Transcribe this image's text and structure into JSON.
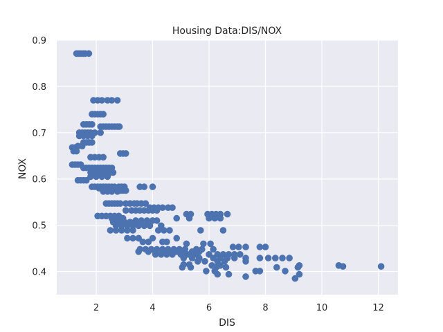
{
  "chart_data": {
    "type": "scatter",
    "title": "Housing Data:DIS/NOX",
    "xlabel": "DIS",
    "ylabel": "NOX",
    "xlim": [
      0.6,
      12.7
    ],
    "ylim": [
      0.35,
      0.9
    ],
    "xticks": [
      2,
      4,
      6,
      8,
      10,
      12
    ],
    "yticks": [
      0.4,
      0.5,
      0.6,
      0.7,
      0.8,
      0.9
    ],
    "grid": true,
    "legend": "none",
    "marker_color": "#4c72b0",
    "background_color": "#eaeaf2",
    "points": [
      [
        1.3,
        0.871
      ],
      [
        1.36,
        0.871
      ],
      [
        1.42,
        0.871
      ],
      [
        1.48,
        0.871
      ],
      [
        1.55,
        0.871
      ],
      [
        1.61,
        0.871
      ],
      [
        1.74,
        0.871
      ],
      [
        1.9,
        0.77
      ],
      [
        2.05,
        0.77
      ],
      [
        2.2,
        0.77
      ],
      [
        2.4,
        0.77
      ],
      [
        2.55,
        0.77
      ],
      [
        2.75,
        0.77
      ],
      [
        1.85,
        0.74
      ],
      [
        1.95,
        0.74
      ],
      [
        2.05,
        0.74
      ],
      [
        2.15,
        0.74
      ],
      [
        2.25,
        0.74
      ],
      [
        2.15,
        0.713
      ],
      [
        2.25,
        0.713
      ],
      [
        2.35,
        0.713
      ],
      [
        2.45,
        0.713
      ],
      [
        2.55,
        0.713
      ],
      [
        2.65,
        0.713
      ],
      [
        2.75,
        0.713
      ],
      [
        2.82,
        0.713
      ],
      [
        1.55,
        0.718
      ],
      [
        1.65,
        0.718
      ],
      [
        1.75,
        0.718
      ],
      [
        1.85,
        0.718
      ],
      [
        1.4,
        0.7
      ],
      [
        1.5,
        0.7
      ],
      [
        1.6,
        0.7
      ],
      [
        1.7,
        0.7
      ],
      [
        1.8,
        0.7
      ],
      [
        1.95,
        0.7
      ],
      [
        2.15,
        0.7
      ],
      [
        1.4,
        0.693
      ],
      [
        1.55,
        0.693
      ],
      [
        1.7,
        0.693
      ],
      [
        1.85,
        0.693
      ],
      [
        1.55,
        0.679
      ],
      [
        1.65,
        0.679
      ],
      [
        1.75,
        0.679
      ],
      [
        1.85,
        0.679
      ],
      [
        1.15,
        0.668
      ],
      [
        1.25,
        0.668
      ],
      [
        1.35,
        0.671
      ],
      [
        1.5,
        0.671
      ],
      [
        1.2,
        0.66
      ],
      [
        1.3,
        0.66
      ],
      [
        2.85,
        0.655
      ],
      [
        2.95,
        0.655
      ],
      [
        3.05,
        0.655
      ],
      [
        1.8,
        0.647
      ],
      [
        1.95,
        0.647
      ],
      [
        2.1,
        0.647
      ],
      [
        2.25,
        0.647
      ],
      [
        1.15,
        0.631
      ],
      [
        1.25,
        0.631
      ],
      [
        1.35,
        0.631
      ],
      [
        1.45,
        0.631
      ],
      [
        1.55,
        0.624
      ],
      [
        1.65,
        0.624
      ],
      [
        1.75,
        0.624
      ],
      [
        1.85,
        0.624
      ],
      [
        1.95,
        0.624
      ],
      [
        2.05,
        0.624
      ],
      [
        2.15,
        0.624
      ],
      [
        2.25,
        0.624
      ],
      [
        2.35,
        0.624
      ],
      [
        2.45,
        0.624
      ],
      [
        2.55,
        0.624
      ],
      [
        1.8,
        0.614
      ],
      [
        1.9,
        0.614
      ],
      [
        2.0,
        0.614
      ],
      [
        2.1,
        0.614
      ],
      [
        2.2,
        0.614
      ],
      [
        2.3,
        0.614
      ],
      [
        2.4,
        0.614
      ],
      [
        2.5,
        0.614
      ],
      [
        2.6,
        0.614
      ],
      [
        1.8,
        0.605
      ],
      [
        2.0,
        0.605
      ],
      [
        2.2,
        0.605
      ],
      [
        2.4,
        0.605
      ],
      [
        1.35,
        0.597
      ],
      [
        1.45,
        0.597
      ],
      [
        1.55,
        0.597
      ],
      [
        1.65,
        0.597
      ],
      [
        1.85,
        0.583
      ],
      [
        1.95,
        0.583
      ],
      [
        2.05,
        0.583
      ],
      [
        2.15,
        0.583
      ],
      [
        2.25,
        0.583
      ],
      [
        2.35,
        0.583
      ],
      [
        2.45,
        0.583
      ],
      [
        2.55,
        0.583
      ],
      [
        2.65,
        0.583
      ],
      [
        2.8,
        0.583
      ],
      [
        2.9,
        0.583
      ],
      [
        3.0,
        0.583
      ],
      [
        3.55,
        0.583
      ],
      [
        3.7,
        0.583
      ],
      [
        4.0,
        0.583
      ],
      [
        2.1,
        0.58
      ],
      [
        2.3,
        0.58
      ],
      [
        2.5,
        0.58
      ],
      [
        2.85,
        0.575
      ],
      [
        2.95,
        0.575
      ],
      [
        3.05,
        0.575
      ],
      [
        2.25,
        0.573
      ],
      [
        2.4,
        0.573
      ],
      [
        2.55,
        0.573
      ],
      [
        2.75,
        0.573
      ],
      [
        2.35,
        0.547
      ],
      [
        2.45,
        0.547
      ],
      [
        2.55,
        0.547
      ],
      [
        2.65,
        0.547
      ],
      [
        2.75,
        0.547
      ],
      [
        2.85,
        0.547
      ],
      [
        3.05,
        0.547
      ],
      [
        3.2,
        0.547
      ],
      [
        3.35,
        0.547
      ],
      [
        3.45,
        0.547
      ],
      [
        3.6,
        0.547
      ],
      [
        3.75,
        0.547
      ],
      [
        3.9,
        0.538
      ],
      [
        4.05,
        0.538
      ],
      [
        4.2,
        0.538
      ],
      [
        4.35,
        0.538
      ],
      [
        4.55,
        0.538
      ],
      [
        4.7,
        0.538
      ],
      [
        3.05,
        0.532
      ],
      [
        3.25,
        0.532
      ],
      [
        3.4,
        0.532
      ],
      [
        3.55,
        0.532
      ],
      [
        3.7,
        0.532
      ],
      [
        3.85,
        0.532
      ],
      [
        4.0,
        0.532
      ],
      [
        4.15,
        0.532
      ],
      [
        5.2,
        0.524
      ],
      [
        5.35,
        0.524
      ],
      [
        5.95,
        0.524
      ],
      [
        6.1,
        0.524
      ],
      [
        6.25,
        0.524
      ],
      [
        6.4,
        0.524
      ],
      [
        6.65,
        0.524
      ],
      [
        2.05,
        0.52
      ],
      [
        2.2,
        0.52
      ],
      [
        2.35,
        0.52
      ],
      [
        2.5,
        0.52
      ],
      [
        2.65,
        0.52
      ],
      [
        2.8,
        0.52
      ],
      [
        2.55,
        0.515
      ],
      [
        2.75,
        0.515
      ],
      [
        2.95,
        0.515
      ],
      [
        4.85,
        0.515
      ],
      [
        5.3,
        0.515
      ],
      [
        6.0,
        0.515
      ],
      [
        6.2,
        0.515
      ],
      [
        6.4,
        0.515
      ],
      [
        2.6,
        0.507
      ],
      [
        2.8,
        0.507
      ],
      [
        3.0,
        0.507
      ],
      [
        3.2,
        0.507
      ],
      [
        3.4,
        0.51
      ],
      [
        3.6,
        0.51
      ],
      [
        3.8,
        0.51
      ],
      [
        4.0,
        0.51
      ],
      [
        4.15,
        0.51
      ],
      [
        2.7,
        0.499
      ],
      [
        2.9,
        0.499
      ],
      [
        3.1,
        0.499
      ],
      [
        3.3,
        0.499
      ],
      [
        3.5,
        0.499
      ],
      [
        3.7,
        0.499
      ],
      [
        3.9,
        0.499
      ],
      [
        4.3,
        0.499
      ],
      [
        2.5,
        0.489
      ],
      [
        2.7,
        0.489
      ],
      [
        2.9,
        0.489
      ],
      [
        3.1,
        0.489
      ],
      [
        3.3,
        0.489
      ],
      [
        4.2,
        0.489
      ],
      [
        4.4,
        0.489
      ],
      [
        4.6,
        0.489
      ],
      [
        5.7,
        0.489
      ],
      [
        6.5,
        0.489
      ],
      [
        3.1,
        0.472
      ],
      [
        3.3,
        0.472
      ],
      [
        3.5,
        0.472
      ],
      [
        4.0,
        0.472
      ],
      [
        4.85,
        0.472
      ],
      [
        3.65,
        0.464
      ],
      [
        3.85,
        0.464
      ],
      [
        4.35,
        0.464
      ],
      [
        4.5,
        0.464
      ],
      [
        5.2,
        0.46
      ],
      [
        5.8,
        0.46
      ],
      [
        6.05,
        0.46
      ],
      [
        3.55,
        0.448
      ],
      [
        3.75,
        0.448
      ],
      [
        3.95,
        0.448
      ],
      [
        4.15,
        0.448
      ],
      [
        4.35,
        0.448
      ],
      [
        4.55,
        0.448
      ],
      [
        4.75,
        0.448
      ],
      [
        4.95,
        0.448
      ],
      [
        5.15,
        0.448
      ],
      [
        5.55,
        0.448
      ],
      [
        5.75,
        0.448
      ],
      [
        6.15,
        0.448
      ],
      [
        3.5,
        0.443
      ],
      [
        3.85,
        0.443
      ],
      [
        4.1,
        0.443
      ],
      [
        4.35,
        0.443
      ],
      [
        4.6,
        0.443
      ],
      [
        4.85,
        0.443
      ],
      [
        5.1,
        0.443
      ],
      [
        5.4,
        0.443
      ],
      [
        5.65,
        0.443
      ],
      [
        4.1,
        0.437
      ],
      [
        4.3,
        0.437
      ],
      [
        4.5,
        0.437
      ],
      [
        4.7,
        0.437
      ],
      [
        5.0,
        0.437
      ],
      [
        5.25,
        0.437
      ],
      [
        5.5,
        0.437
      ],
      [
        6.0,
        0.437
      ],
      [
        6.3,
        0.437
      ],
      [
        6.5,
        0.437
      ],
      [
        6.7,
        0.437
      ],
      [
        6.9,
        0.437
      ],
      [
        7.1,
        0.437
      ],
      [
        5.1,
        0.429
      ],
      [
        5.4,
        0.429
      ],
      [
        5.65,
        0.429
      ],
      [
        6.15,
        0.429
      ],
      [
        6.4,
        0.429
      ],
      [
        6.65,
        0.429
      ],
      [
        6.9,
        0.429
      ],
      [
        7.3,
        0.429
      ],
      [
        7.8,
        0.429
      ],
      [
        8.1,
        0.429
      ],
      [
        8.35,
        0.429
      ],
      [
        8.6,
        0.429
      ],
      [
        8.85,
        0.429
      ],
      [
        6.85,
        0.453
      ],
      [
        7.05,
        0.453
      ],
      [
        7.3,
        0.453
      ],
      [
        7.8,
        0.453
      ],
      [
        8.0,
        0.453
      ],
      [
        5.6,
        0.422
      ],
      [
        5.85,
        0.422
      ],
      [
        6.3,
        0.422
      ],
      [
        6.55,
        0.422
      ],
      [
        7.3,
        0.422
      ],
      [
        5.1,
        0.415
      ],
      [
        5.3,
        0.415
      ],
      [
        6.1,
        0.413
      ],
      [
        6.4,
        0.413
      ],
      [
        9.2,
        0.413
      ],
      [
        10.6,
        0.413
      ],
      [
        10.75,
        0.411
      ],
      [
        12.1,
        0.411
      ],
      [
        5.05,
        0.409
      ],
      [
        5.35,
        0.409
      ],
      [
        6.25,
        0.409
      ],
      [
        6.6,
        0.409
      ],
      [
        8.4,
        0.409
      ],
      [
        9.15,
        0.409
      ],
      [
        5.9,
        0.401
      ],
      [
        6.2,
        0.401
      ],
      [
        7.65,
        0.401
      ],
      [
        7.8,
        0.401
      ],
      [
        8.7,
        0.401
      ],
      [
        6.3,
        0.394
      ],
      [
        6.7,
        0.394
      ],
      [
        9.2,
        0.394
      ],
      [
        7.3,
        0.389
      ],
      [
        9.05,
        0.385
      ]
    ]
  }
}
